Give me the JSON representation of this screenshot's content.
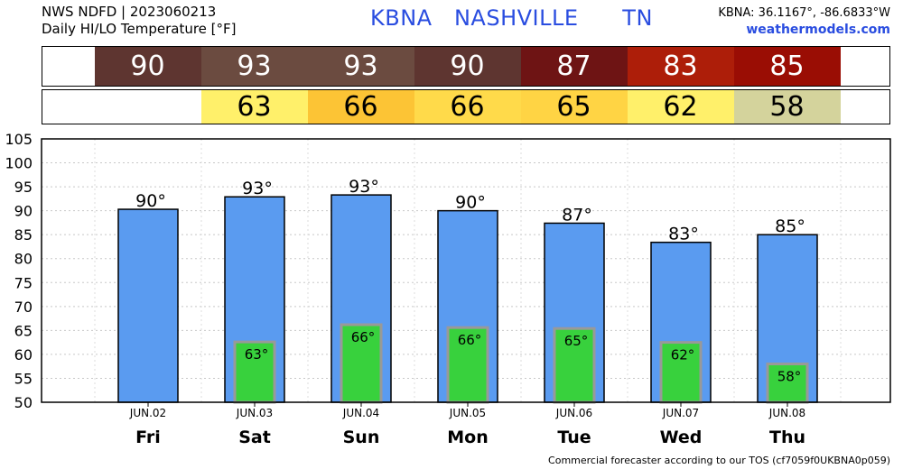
{
  "header": {
    "line1": "NWS NDFD | 2023060213",
    "line2": "Daily HI/LO Temperature [°F]",
    "station": "KBNA   NASHVILLE      TN",
    "coords": "KBNA: 36.1167°, -86.6833°W",
    "site": "weathermodels.com"
  },
  "footer": "Commercial forecaster according to our TOS (cf7059f0UKBNA0p059)",
  "strips": {
    "hi": [
      {
        "value": "90",
        "color": "#5e3530"
      },
      {
        "value": "93",
        "color": "#6b4b40"
      },
      {
        "value": "93",
        "color": "#6b4b40"
      },
      {
        "value": "90",
        "color": "#5e3530"
      },
      {
        "value": "87",
        "color": "#6e1414"
      },
      {
        "value": "83",
        "color": "#ad1e09"
      },
      {
        "value": "85",
        "color": "#9a0d04"
      }
    ],
    "lo": [
      {
        "value": "",
        "color": "#ffffff"
      },
      {
        "value": "63",
        "color": "#fff06a"
      },
      {
        "value": "66",
        "color": "#fcc435"
      },
      {
        "value": "66",
        "color": "#ffda4a"
      },
      {
        "value": "65",
        "color": "#ffd444"
      },
      {
        "value": "62",
        "color": "#fff06a"
      },
      {
        "value": "58",
        "color": "#d4d39c"
      }
    ]
  },
  "chart_data": {
    "type": "bar",
    "categories": [
      "Fri",
      "Sat",
      "Sun",
      "Mon",
      "Tue",
      "Wed",
      "Thu"
    ],
    "dates": [
      "JUN.02",
      "JUN.03",
      "JUN.04",
      "JUN.05",
      "JUN.06",
      "JUN.07",
      "JUN.08"
    ],
    "series": [
      {
        "values": [
          90.3,
          92.9,
          93.3,
          90.0,
          87.4,
          83.4,
          85.0
        ],
        "labels": [
          "90°",
          "93°",
          "93°",
          "90°",
          "87°",
          "83°",
          "85°"
        ],
        "color": "#5a9bf0"
      },
      {
        "values": [
          null,
          62.6,
          66.2,
          65.6,
          65.4,
          62.5,
          58.0
        ],
        "labels": [
          "",
          "63°",
          "66°",
          "66°",
          "65°",
          "62°",
          "58°"
        ],
        "color": "#38d13d"
      }
    ],
    "ylim": [
      50,
      105
    ],
    "yticks": [
      50,
      55,
      60,
      65,
      70,
      75,
      80,
      85,
      90,
      95,
      100,
      105
    ],
    "grid": true
  }
}
